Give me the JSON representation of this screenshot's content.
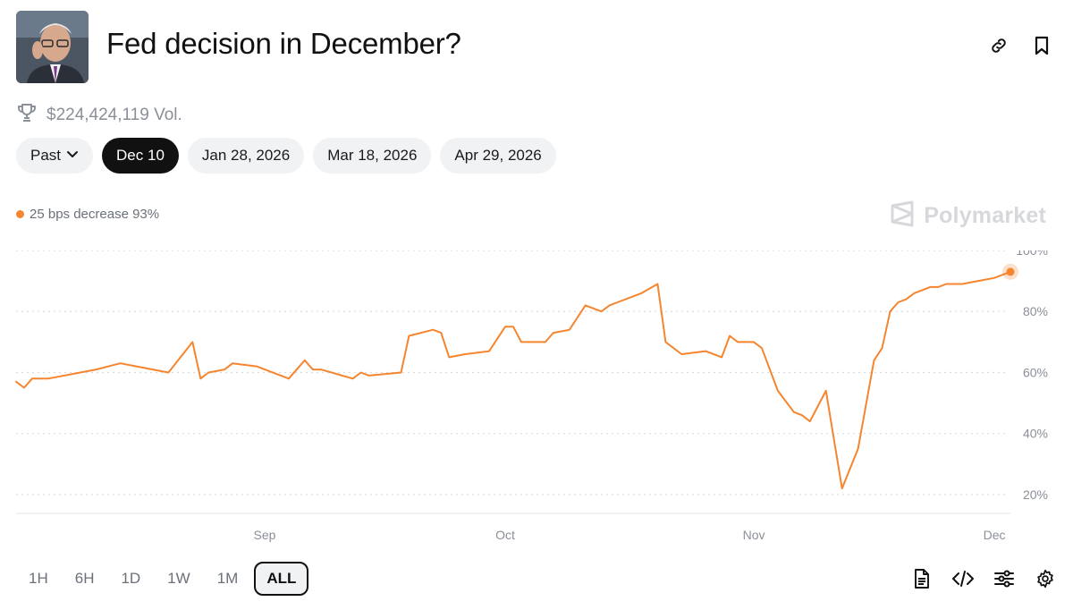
{
  "market": {
    "title": "Fed decision in December?",
    "volume": "$224,424,119 Vol."
  },
  "icons": {
    "link": "link-icon",
    "bookmark": "bookmark-icon",
    "trophy": "trophy-icon",
    "chevron": "chevron-down-icon",
    "logo": "polymarket-logo-icon",
    "doc": "document-icon",
    "embed": "code-icon",
    "filters": "sliders-icon",
    "settings": "gear-icon"
  },
  "tabs": {
    "past": "Past",
    "items": [
      "Dec 10",
      "Jan 28, 2026",
      "Mar 18, 2026",
      "Apr 29, 2026"
    ]
  },
  "legend": {
    "label": "25 bps decrease 93%"
  },
  "brand": "Polymarket",
  "ranges": [
    "1H",
    "6H",
    "1D",
    "1W",
    "1M",
    "ALL"
  ],
  "colors": {
    "series": "#f5852f",
    "active_tab": "#111111",
    "grid": "#d9dbe0"
  },
  "chart_data": {
    "type": "line",
    "title": "",
    "xlabel": "",
    "ylabel": "",
    "xticks": [
      "Sep",
      "Oct",
      "Nov",
      "Dec"
    ],
    "yticks": [
      "20%",
      "40%",
      "60%",
      "80%",
      "100%"
    ],
    "ylim": [
      15,
      100
    ],
    "grid": true,
    "y_axis_side": "right",
    "series": [
      {
        "name": "25 bps decrease",
        "color": "#f5852f",
        "x": [
          "2025-08-01",
          "2025-08-02",
          "2025-08-03",
          "2025-08-05",
          "2025-08-09",
          "2025-08-11",
          "2025-08-14",
          "2025-08-16",
          "2025-08-20",
          "2025-08-23",
          "2025-08-24",
          "2025-08-25",
          "2025-08-27",
          "2025-08-28",
          "2025-08-31",
          "2025-09-04",
          "2025-09-06",
          "2025-09-07",
          "2025-09-08",
          "2025-09-12",
          "2025-09-13",
          "2025-09-14",
          "2025-09-18",
          "2025-09-19",
          "2025-09-22",
          "2025-09-23",
          "2025-09-24",
          "2025-09-26",
          "2025-09-29",
          "2025-10-01",
          "2025-10-02",
          "2025-10-03",
          "2025-10-06",
          "2025-10-07",
          "2025-10-09",
          "2025-10-11",
          "2025-10-13",
          "2025-10-14",
          "2025-10-15",
          "2025-10-17",
          "2025-10-18",
          "2025-10-20",
          "2025-10-21",
          "2025-10-23",
          "2025-10-26",
          "2025-10-28",
          "2025-10-29",
          "2025-10-30",
          "2025-11-01",
          "2025-11-02",
          "2025-11-04",
          "2025-11-06",
          "2025-11-07",
          "2025-11-08",
          "2025-11-10",
          "2025-11-12",
          "2025-11-14",
          "2025-11-16",
          "2025-11-17",
          "2025-11-18",
          "2025-11-19",
          "2025-11-20",
          "2025-11-21",
          "2025-11-22",
          "2025-11-23",
          "2025-11-24",
          "2025-11-25",
          "2025-11-27",
          "2025-11-29",
          "2025-12-01",
          "2025-12-02",
          "2025-12-03"
        ],
        "values": [
          57,
          55,
          58,
          58,
          60,
          61,
          63,
          62,
          60,
          70,
          58,
          60,
          61,
          63,
          62,
          58,
          64,
          61,
          61,
          58,
          60,
          59,
          60,
          72,
          74,
          73,
          65,
          66,
          67,
          75,
          75,
          70,
          70,
          73,
          74,
          82,
          80,
          82,
          83,
          85,
          86,
          89,
          70,
          66,
          67,
          65,
          72,
          70,
          70,
          68,
          54,
          47,
          46,
          44,
          54,
          22,
          35,
          64,
          68,
          80,
          83,
          84,
          86,
          87,
          88,
          88,
          89,
          89,
          90,
          91,
          92,
          93
        ]
      }
    ]
  }
}
